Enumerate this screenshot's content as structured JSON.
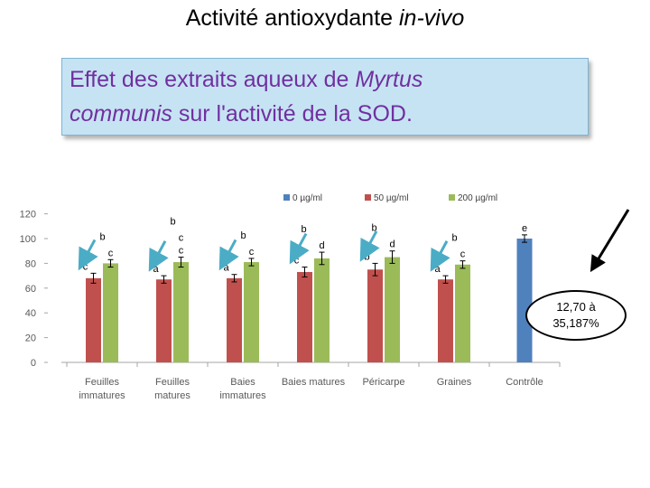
{
  "slide": {
    "title_plain": "Activité antioxydante ",
    "title_italic": "in-vivo",
    "subtitle_part1": "Effet des extraits aqueux  de ",
    "subtitle_italic1": "Myrtus",
    "subtitle_italic2": "communis",
    "subtitle_part2": " sur l'activité de la SOD.",
    "callout_line1": "12,70  à",
    "callout_line2": "35,187%"
  },
  "colors": {
    "s0": "#4f81bd",
    "s50": "#c0504d",
    "s200": "#9bbb59",
    "arrow": "#4bacc6"
  },
  "chart_data": {
    "type": "bar",
    "ylim": [
      0,
      120
    ],
    "yticks": [
      "0",
      "20",
      "40",
      "60",
      "80",
      "100",
      "120"
    ],
    "categories": [
      [
        "Feuilles",
        "immatures"
      ],
      [
        "Feuilles",
        "matures"
      ],
      [
        "Baies",
        "immatures"
      ],
      [
        "Baies matures"
      ],
      [
        "Péricarpe"
      ],
      [
        "Graines"
      ],
      [
        "Contrôle"
      ]
    ],
    "series": [
      {
        "name": "0 µg/ml",
        "values": [
          null,
          null,
          null,
          null,
          null,
          null,
          100
        ],
        "errors": [
          null,
          null,
          null,
          null,
          null,
          null,
          3
        ],
        "letters": [
          "",
          "",
          "",
          "",
          "",
          "",
          "e"
        ]
      },
      {
        "name": "50 µg/ml",
        "values": [
          68,
          67,
          68,
          73,
          75,
          67,
          null
        ],
        "errors": [
          4,
          3,
          3,
          4,
          5,
          3,
          null
        ],
        "letters": [
          "c",
          "a",
          "a",
          "c",
          "b",
          "a",
          ""
        ]
      },
      {
        "name": "200 µg/ml",
        "values": [
          80,
          81,
          81,
          84,
          85,
          79,
          null
        ],
        "errors": [
          3,
          4,
          3,
          5,
          5,
          3,
          null
        ],
        "letters": [
          "c",
          "c",
          "c",
          "d",
          "d",
          "c",
          ""
        ]
      }
    ],
    "upper_letters": [
      "b",
      "b",
      "b",
      "b",
      "b",
      "b",
      ""
    ],
    "mid_letters_200": [
      "",
      "c",
      "",
      "",
      "",
      "",
      ""
    ]
  }
}
